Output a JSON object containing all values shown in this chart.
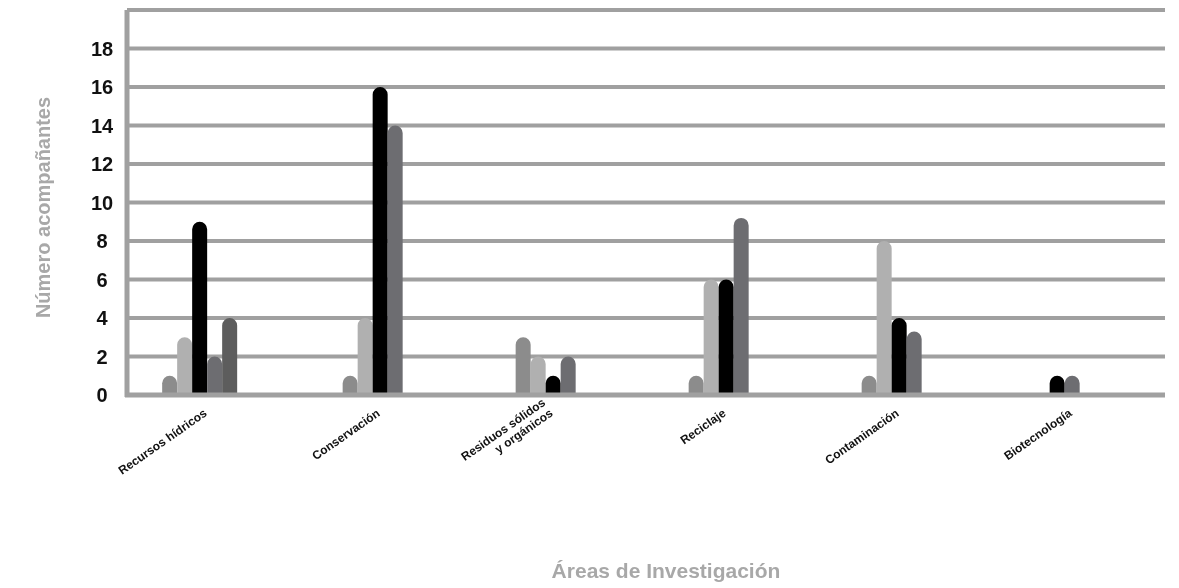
{
  "chart_data": {
    "type": "bar",
    "xlabel": "Áreas de Investigación",
    "ylabel": "Número acompañantes",
    "categories": [
      "Recursos hídricos",
      "Conservación",
      "Residuos sólidos\ny orgánicos",
      "Reciclaje",
      "Contaminación",
      "Biotecnología"
    ],
    "series": [
      {
        "color": "#8c8c8c",
        "values": [
          1,
          1,
          3,
          1,
          1,
          null
        ]
      },
      {
        "color": "#b0b0b0",
        "values": [
          3,
          4,
          2,
          6,
          8,
          null
        ]
      },
      {
        "color": "#000000",
        "values": [
          9,
          16,
          1,
          6,
          4,
          1
        ]
      },
      {
        "color": "#6d6d71",
        "values": [
          2,
          14,
          2,
          9.2,
          3.3,
          1
        ]
      },
      {
        "color": "#5d5d5d",
        "values": [
          4,
          null,
          null,
          null,
          null,
          null
        ]
      }
    ],
    "ylim": [
      0,
      20
    ],
    "yticks": [
      0,
      2,
      4,
      6,
      8,
      10,
      12,
      14,
      16,
      18,
      {
        "value": 20,
        "label": null
      }
    ],
    "grid": "y"
  }
}
